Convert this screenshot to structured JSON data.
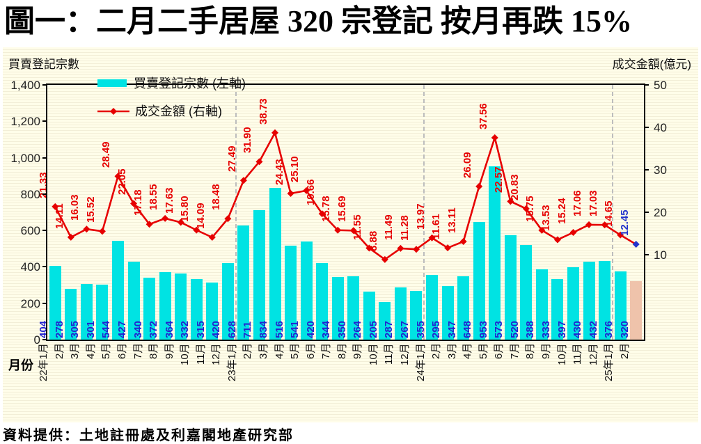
{
  "title": "圖一：二月二手居屋 320 宗登記  按月再跌 15%",
  "left_axis_title": "買賣登記宗數",
  "right_axis_title": "成交金額(億元)",
  "xaxis_title": "月份",
  "source": "資料提供：土地註冊處及利嘉閣地產研究部",
  "legend": [
    {
      "label": "買賣登記宗數 (左軸)",
      "type": "bar"
    },
    {
      "label": "成交金額 (右軸)",
      "type": "line"
    }
  ],
  "colors": {
    "bar": "#00e3e3",
    "highlight_bar": "#efc3ab",
    "bar_label": "#2222d0",
    "line": "#e60000",
    "marker": "#e60000",
    "last_marker": "#2233cc",
    "point_label": "#e60000",
    "last_point_label": "#2233cc",
    "background": "#fdfbe3",
    "divider": "#bdbdbd"
  },
  "chart_data": {
    "type": "bar+line",
    "categories": [
      "22年1月",
      "2月",
      "3月",
      "4月",
      "5月",
      "6月",
      "7月",
      "8月",
      "9月",
      "10月",
      "11月",
      "12月",
      "23年1月",
      "2月",
      "3月",
      "4月",
      "5月",
      "6月",
      "7月",
      "8月",
      "9月",
      "10月",
      "11月",
      "12月",
      "24年1月",
      "2月",
      "3月",
      "4月",
      "5月",
      "6月",
      "7月",
      "8月",
      "9月",
      "10月",
      "11月",
      "12月",
      "25年1月",
      "2月"
    ],
    "series": [
      {
        "name": "買賣登記宗數 (左軸)",
        "type": "bar",
        "axis": "left",
        "values": [
          404,
          278,
          305,
          301,
          544,
          427,
          340,
          372,
          364,
          332,
          315,
          420,
          628,
          711,
          834,
          516,
          541,
          420,
          344,
          350,
          264,
          205,
          287,
          267,
          355,
          295,
          347,
          648,
          953,
          573,
          520,
          388,
          333,
          397,
          430,
          432,
          376,
          320
        ]
      },
      {
        "name": "成交金額 (右軸)",
        "type": "line",
        "axis": "right",
        "values": [
          21.33,
          14.11,
          16.03,
          15.52,
          28.49,
          22.05,
          17.18,
          18.55,
          17.63,
          15.8,
          14.09,
          18.48,
          27.49,
          31.9,
          38.73,
          24.43,
          25.1,
          19.66,
          15.78,
          15.69,
          11.55,
          8.88,
          11.49,
          11.28,
          13.97,
          11.61,
          13.11,
          26.09,
          37.56,
          22.57,
          20.83,
          15.75,
          13.53,
          15.24,
          17.06,
          17.03,
          14.65,
          12.45
        ]
      }
    ],
    "left_axis": {
      "min": 0,
      "max": 1400,
      "ticks": [
        "1,400",
        "1,200",
        "1,000",
        "800",
        "600",
        "400",
        "200",
        "0"
      ]
    },
    "right_axis": {
      "min": -10,
      "max": 50,
      "ticks": [
        "50",
        "40",
        "30",
        "20",
        "10"
      ]
    },
    "year_divider_indices": [
      12,
      24,
      36
    ],
    "highlight_last": true,
    "grid": "off",
    "legend_position": "top-left-inside"
  }
}
